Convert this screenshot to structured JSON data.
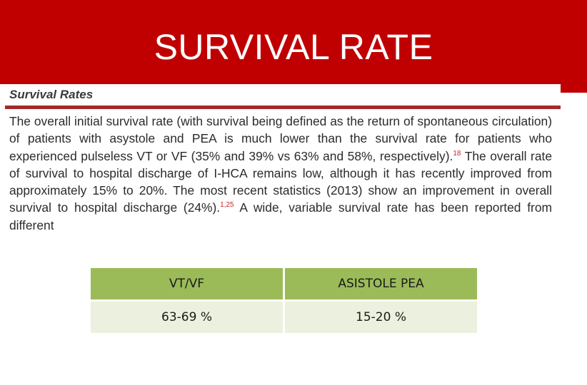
{
  "slide": {
    "title": "SURVIVAL RATE"
  },
  "excerpt": {
    "heading": "Survival Rates",
    "paragraph_part1": "The overall initial survival rate (with survival being defined as the return of spontaneous circulation) of patients with asystole and PEA is much lower than the survival rate for patients who experienced pulseless VT or VF (35% and 39% vs 63% and 58%, respectively).",
    "ref1": "18",
    "paragraph_part2": " The overall rate of survival to hospital discharge of I-HCA remains low, although it has recently improved from approximately 15% to 20%. The most recent statistics (2013) show an improvement in overall survival to hospital discharge (24%).",
    "ref2": "1,25",
    "paragraph_part3": " A wide, variable survival rate has been reported from different"
  },
  "table": {
    "headers": [
      "VT/VF",
      "ASISTOLE PEA"
    ],
    "rows": [
      [
        "63-69 %",
        "15-20 %"
      ]
    ]
  },
  "colors": {
    "title_bar": "#c00000",
    "table_header": "#9bbb59",
    "table_row": "#ebf1de",
    "excerpt_rule": "#a32a2a"
  }
}
